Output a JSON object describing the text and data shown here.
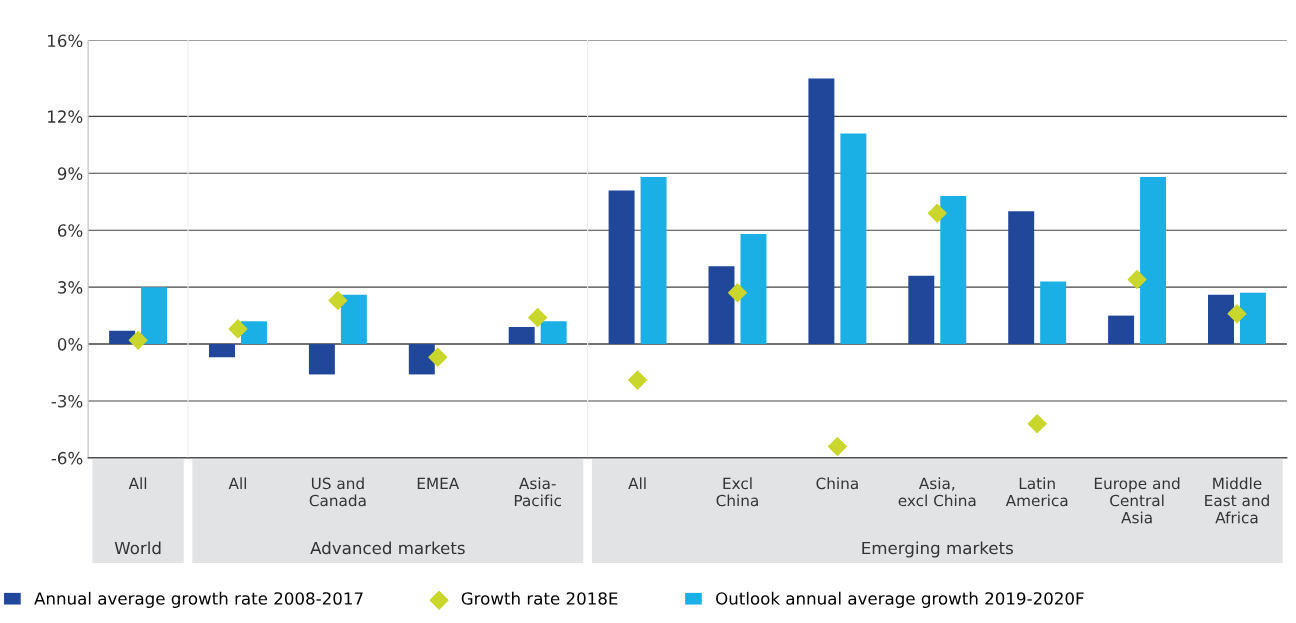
{
  "chart_data": [
    {
      "type": "bar",
      "xlabel": "World",
      "categories": [
        "All"
      ],
      "series": [
        {
          "name": "Annual average growth rate 2008-2017",
          "color": "#21479b",
          "values": [
            0.7
          ]
        },
        {
          "name": "Growth rate 2018E",
          "type": "scatter",
          "marker": "diamond",
          "color": "#c9d62b",
          "values": [
            0.2
          ]
        },
        {
          "name": "Outlook annual average growth 2019-2020F",
          "color": "#1aafe5",
          "values": [
            3.0
          ]
        }
      ],
      "ylim": [
        -6,
        16
      ],
      "yticks": [
        {
          "value": -6,
          "label": "-6%"
        },
        {
          "value": -3,
          "label": "-3%"
        },
        {
          "value": 0,
          "label": "0%"
        },
        {
          "value": 3,
          "label": "3%"
        },
        {
          "value": 6,
          "label": "6%"
        },
        {
          "value": 9,
          "label": "9%"
        },
        {
          "value": 12,
          "label": "12%"
        },
        {
          "value": 16,
          "label": "16%"
        }
      ],
      "grid": "y",
      "legend": "bottom"
    },
    {
      "type": "bar",
      "xlabel": "Advanced markets",
      "categories": [
        "All",
        "US and\nCanada",
        "EMEA",
        "Asia-\nPacific"
      ],
      "series": [
        {
          "color": "#21479b",
          "values": [
            -0.7,
            -1.6,
            -1.6,
            0.9
          ]
        },
        {
          "type": "scatter",
          "marker": "diamond",
          "color": "#c9d62b",
          "values": [
            0.8,
            2.3,
            -0.7,
            1.4
          ]
        },
        {
          "color": "#1aafe5",
          "values": [
            1.2,
            2.6,
            null,
            1.2
          ]
        }
      ],
      "ylim": [
        -6,
        16
      ],
      "yticks": [
        {
          "value": -6,
          "label": null
        },
        {
          "value": -3,
          "label": null
        },
        {
          "value": 0,
          "label": null
        },
        {
          "value": 3,
          "label": null
        },
        {
          "value": 6,
          "label": null
        },
        {
          "value": 9,
          "label": null
        },
        {
          "value": 12,
          "label": null
        },
        {
          "value": 16,
          "label": null
        }
      ],
      "tick_labels": "x",
      "grid": "y"
    },
    {
      "type": "bar",
      "xlabel": "Emerging markets",
      "categories": [
        "All",
        "Excl\nChina",
        "China",
        "Asia,\nexcl China",
        "Latin\nAmerica",
        "Europe and\nCentral\nAsia",
        "Middle\nEast and\nAfrica"
      ],
      "series": [
        {
          "color": "#21479b",
          "values": [
            8.1,
            4.1,
            14.0,
            3.6,
            7.0,
            1.5,
            2.6
          ]
        },
        {
          "type": "scatter",
          "marker": "diamond",
          "color": "#c9d62b",
          "values": [
            -1.9,
            2.7,
            -5.4,
            6.9,
            -4.2,
            3.4,
            1.6
          ]
        },
        {
          "color": "#1aafe5",
          "values": [
            8.8,
            5.8,
            11.1,
            7.8,
            3.3,
            8.8,
            2.7
          ]
        }
      ],
      "ylim": [
        -6,
        16
      ],
      "yticks": [
        {
          "value": -6,
          "label": null
        },
        {
          "value": -3,
          "label": null
        },
        {
          "value": 0,
          "label": null
        },
        {
          "value": 3,
          "label": null
        },
        {
          "value": 6,
          "label": null
        },
        {
          "value": 9,
          "label": null
        },
        {
          "value": 12,
          "label": null
        },
        {
          "value": 16,
          "label": null
        }
      ],
      "tick_labels": "x",
      "grid": "y"
    }
  ]
}
